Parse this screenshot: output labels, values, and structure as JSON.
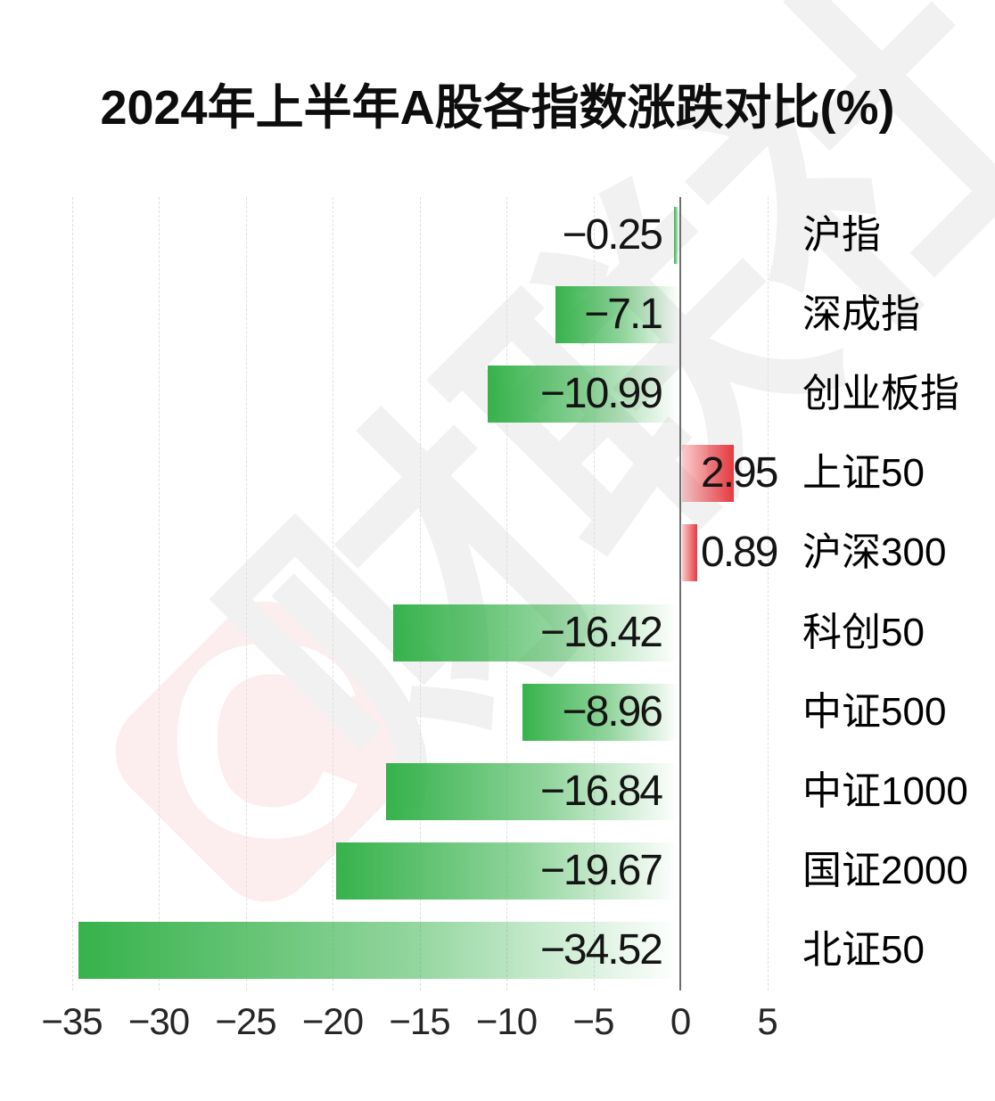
{
  "title": "2024年上半年A股各指数涨跌对比(%)",
  "watermark": {
    "logo_letter": "C",
    "text": "财联社",
    "pink": "#fceeee",
    "gray": "#f1f1f1"
  },
  "colors": {
    "negative_bar": "#36b24b",
    "positive_bar": "#e6393f",
    "axis_line": "#6e6e6e",
    "gridline": "#dedede",
    "label_text": "#141414"
  },
  "chart_data": {
    "type": "bar",
    "orientation": "horizontal",
    "title": "2024年上半年A股各指数涨跌对比(%)",
    "categories": [
      "沪指",
      "深成指",
      "创业板指",
      "上证50",
      "沪深300",
      "科创50",
      "中证500",
      "中证1000",
      "国证2000",
      "北证50"
    ],
    "values": [
      -0.25,
      -7.1,
      -10.99,
      2.95,
      0.89,
      -16.42,
      -8.96,
      -16.84,
      -19.67,
      -34.52
    ],
    "value_labels": [
      "-0.25",
      "-7.1",
      "-10.99",
      "2.95",
      "0.89",
      "-16.42",
      "-8.96",
      "-16.84",
      "-19.67",
      "-34.52"
    ],
    "xlim": [
      -35,
      5
    ],
    "xticks": [
      -35,
      -30,
      -25,
      -20,
      -15,
      -10,
      -5,
      0,
      5
    ],
    "grid": true,
    "legend": null,
    "color_rule": "negative values green gradient fading toward zero, positive values red gradient darkening away from zero"
  }
}
